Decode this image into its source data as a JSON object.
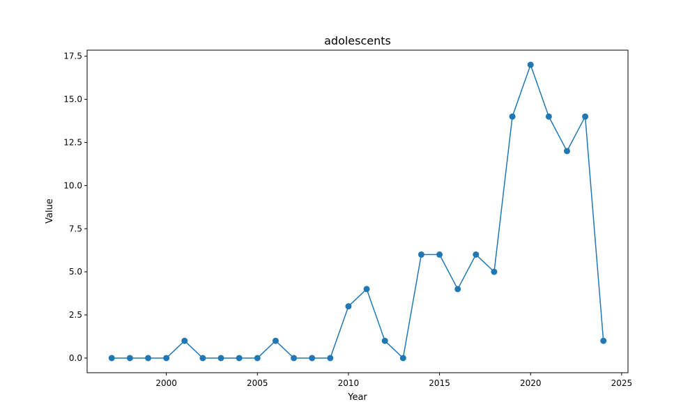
{
  "chart_data": {
    "type": "line",
    "title": "adolescents",
    "xlabel": "Year",
    "ylabel": "Value",
    "x": [
      1997,
      1998,
      1999,
      2000,
      2001,
      2002,
      2003,
      2004,
      2005,
      2006,
      2007,
      2008,
      2009,
      2010,
      2011,
      2012,
      2013,
      2014,
      2015,
      2016,
      2017,
      2018,
      2019,
      2020,
      2021,
      2022,
      2023,
      2024
    ],
    "series": [
      {
        "values": [
          0,
          0,
          0,
          0,
          1,
          0,
          0,
          0,
          0,
          1,
          0,
          0,
          0,
          3,
          4,
          1,
          0,
          6,
          6,
          4,
          6,
          5,
          14,
          17,
          14,
          12,
          14,
          1
        ],
        "color": "#1f77b4",
        "marker": "circle"
      }
    ],
    "xlim": [
      1995.65,
      2025.35
    ],
    "ylim": [
      -0.85,
      17.85
    ],
    "xticks": [
      2000,
      2005,
      2010,
      2015,
      2020,
      2025
    ],
    "xtick_labels": [
      "2000",
      "2005",
      "2010",
      "2015",
      "2020",
      "2025"
    ],
    "yticks": [
      0,
      2.5,
      5,
      7.5,
      10,
      12.5,
      15,
      17.5
    ],
    "ytick_labels": [
      "0.0",
      "2.5",
      "5.0",
      "7.5",
      "10.0",
      "12.5",
      "15.0",
      "17.5"
    ],
    "grid": false,
    "legend": "none"
  }
}
